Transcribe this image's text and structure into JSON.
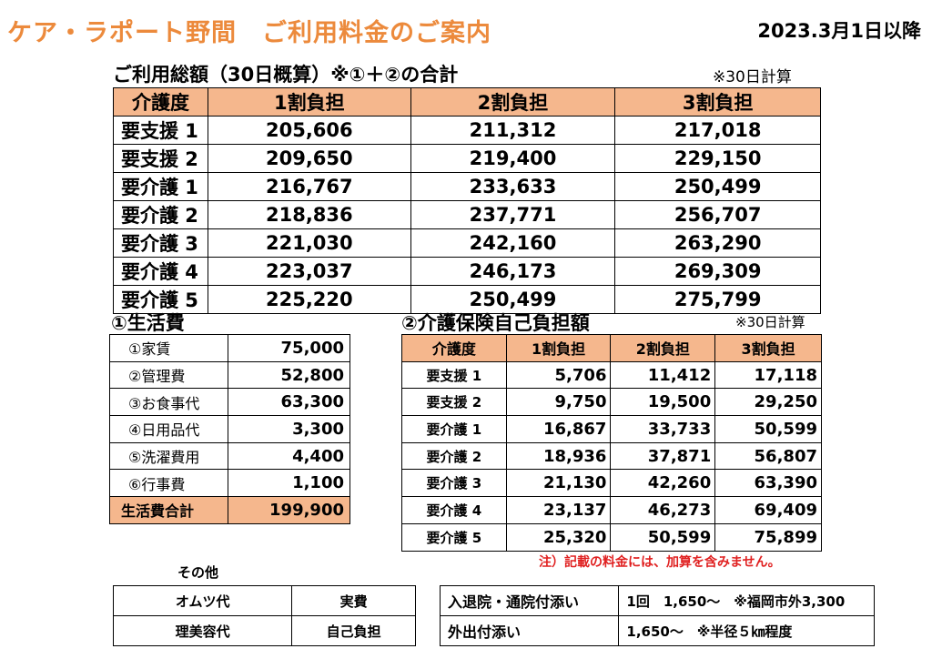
{
  "header": {
    "title": "ケア・ラポート野間　ご利用料金のご案内",
    "date": "2023.3月1日以降"
  },
  "total": {
    "title": "ご利用総額（30日概算）※①＋②の合計",
    "note": "※30日計算",
    "headers": [
      "介護度",
      "1割負担",
      "2割負担",
      "3割負担"
    ],
    "rows": [
      [
        "要支援 1",
        "205,606",
        "211,312",
        "217,018"
      ],
      [
        "要支援 2",
        "209,650",
        "219,400",
        "229,150"
      ],
      [
        "要介護 1",
        "216,767",
        "233,633",
        "250,499"
      ],
      [
        "要介護 2",
        "218,836",
        "237,771",
        "256,707"
      ],
      [
        "要介護 3",
        "221,030",
        "242,160",
        "263,290"
      ],
      [
        "要介護 4",
        "223,037",
        "246,173",
        "269,309"
      ],
      [
        "要介護 5",
        "225,220",
        "250,499",
        "275,799"
      ]
    ]
  },
  "living": {
    "title": "①生活費",
    "rows": [
      [
        "①家賃",
        "75,000"
      ],
      [
        "②管理費",
        "52,800"
      ],
      [
        "③お食事代",
        "63,300"
      ],
      [
        "④日用品代",
        "3,300"
      ],
      [
        "⑤洗濯費用",
        "4,400"
      ],
      [
        "⑥行事費",
        "1,100"
      ]
    ],
    "total_label": "生活費合計",
    "total_value": "199,900"
  },
  "insurance": {
    "title": "②介護保険自己負担額",
    "note": "※30日計算",
    "headers": [
      "介護度",
      "1割負担",
      "2割負担",
      "3割負担"
    ],
    "rows": [
      [
        "要支援 1",
        "5,706",
        "11,412",
        "17,118"
      ],
      [
        "要支援 2",
        "9,750",
        "19,500",
        "29,250"
      ],
      [
        "要介護 1",
        "16,867",
        "33,733",
        "50,599"
      ],
      [
        "要介護 2",
        "18,936",
        "37,871",
        "56,807"
      ],
      [
        "要介護 3",
        "21,130",
        "42,260",
        "63,390"
      ],
      [
        "要介護 4",
        "23,137",
        "46,273",
        "69,409"
      ],
      [
        "要介護 5",
        "25,320",
        "50,599",
        "75,899"
      ]
    ],
    "footnote": "注）記載の料金には、加算を含みません。"
  },
  "other": {
    "title": "その他",
    "rows": [
      [
        "オムツ代",
        "実費"
      ],
      [
        "理美容代",
        "自己負担"
      ]
    ]
  },
  "escort": {
    "rows": [
      [
        "入退院・通院付添い",
        "1回　1,650～　※福岡市外3,300"
      ],
      [
        "外出付添い",
        "1,650～　※半径５㎞程度"
      ]
    ]
  }
}
